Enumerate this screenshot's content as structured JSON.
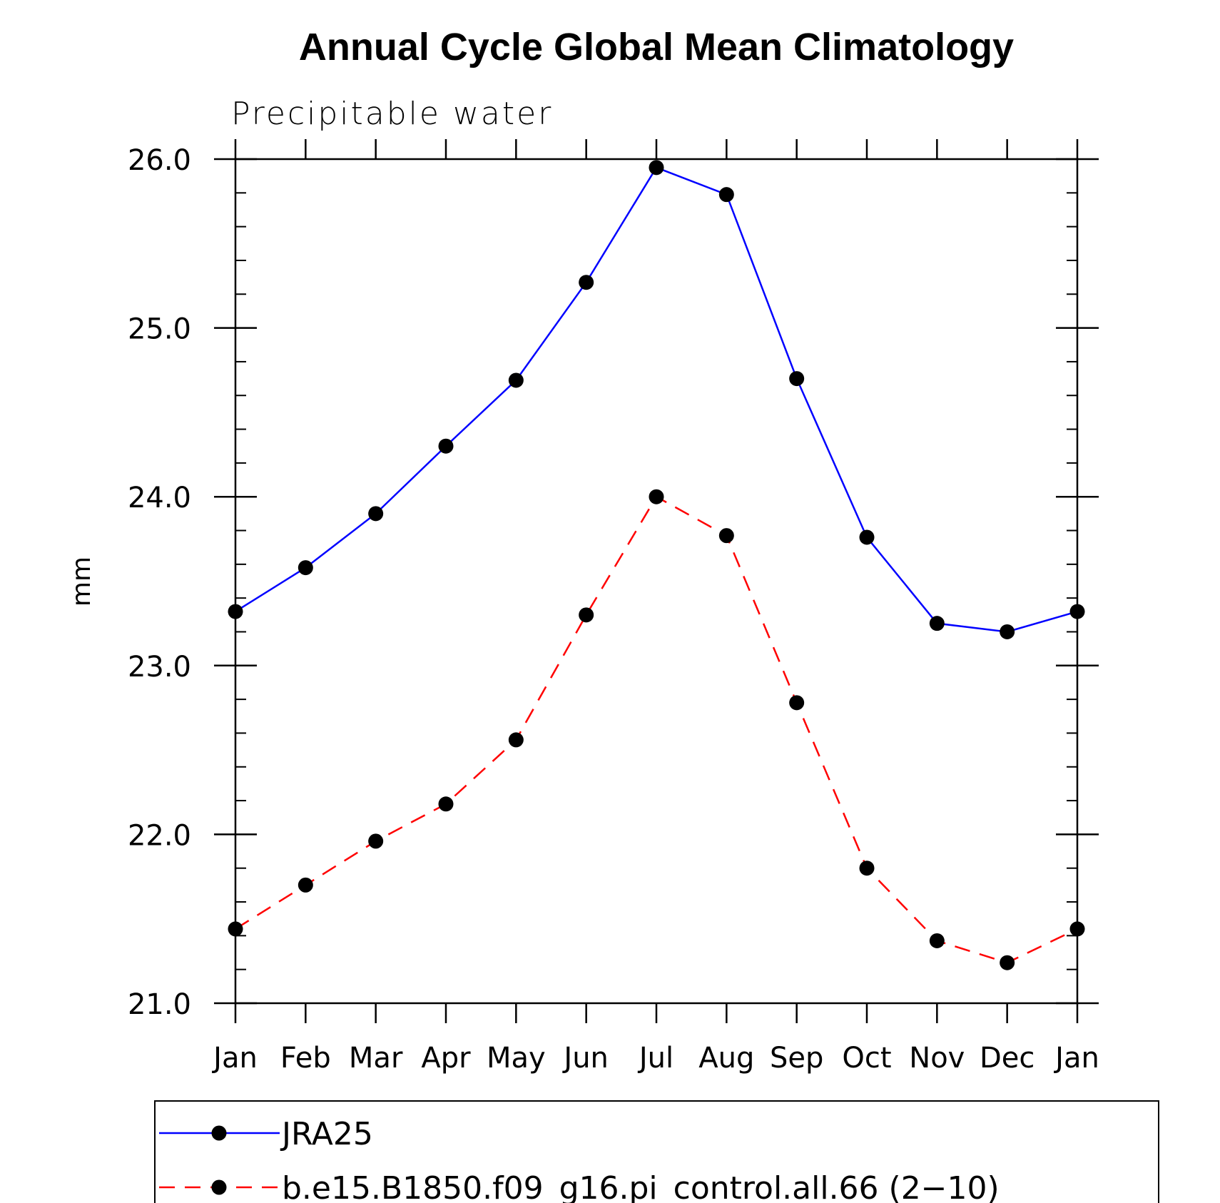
{
  "chart_data": {
    "type": "line",
    "title": "Annual Cycle Global Mean Climatology",
    "subtitle": "Precipitable water",
    "ylabel": "mm",
    "xlabel": "",
    "categories": [
      "Jan",
      "Feb",
      "Mar",
      "Apr",
      "May",
      "Jun",
      "Jul",
      "Aug",
      "Sep",
      "Oct",
      "Nov",
      "Dec",
      "Jan"
    ],
    "ylim": [
      21.0,
      26.0
    ],
    "yticks": [
      "21.0",
      "22.0",
      "23.0",
      "24.0",
      "25.0",
      "26.0"
    ],
    "grid": false,
    "legend_position": "bottom",
    "series": [
      {
        "name": "JRA25",
        "color": "#0000ff",
        "line_style": "solid",
        "marker": "filled-circle",
        "values": [
          23.32,
          23.58,
          23.9,
          24.3,
          24.69,
          25.27,
          25.95,
          25.79,
          24.7,
          23.76,
          23.25,
          23.2,
          23.32
        ]
      },
      {
        "name": "b.e15.B1850.f09_g16.pi_control.all.66 (2−10)",
        "color": "#ff0000",
        "line_style": "dashed",
        "marker": "filled-circle",
        "values": [
          21.44,
          21.7,
          21.96,
          22.18,
          22.56,
          23.3,
          24.0,
          23.77,
          22.78,
          21.8,
          21.37,
          21.24,
          21.44
        ]
      }
    ]
  }
}
